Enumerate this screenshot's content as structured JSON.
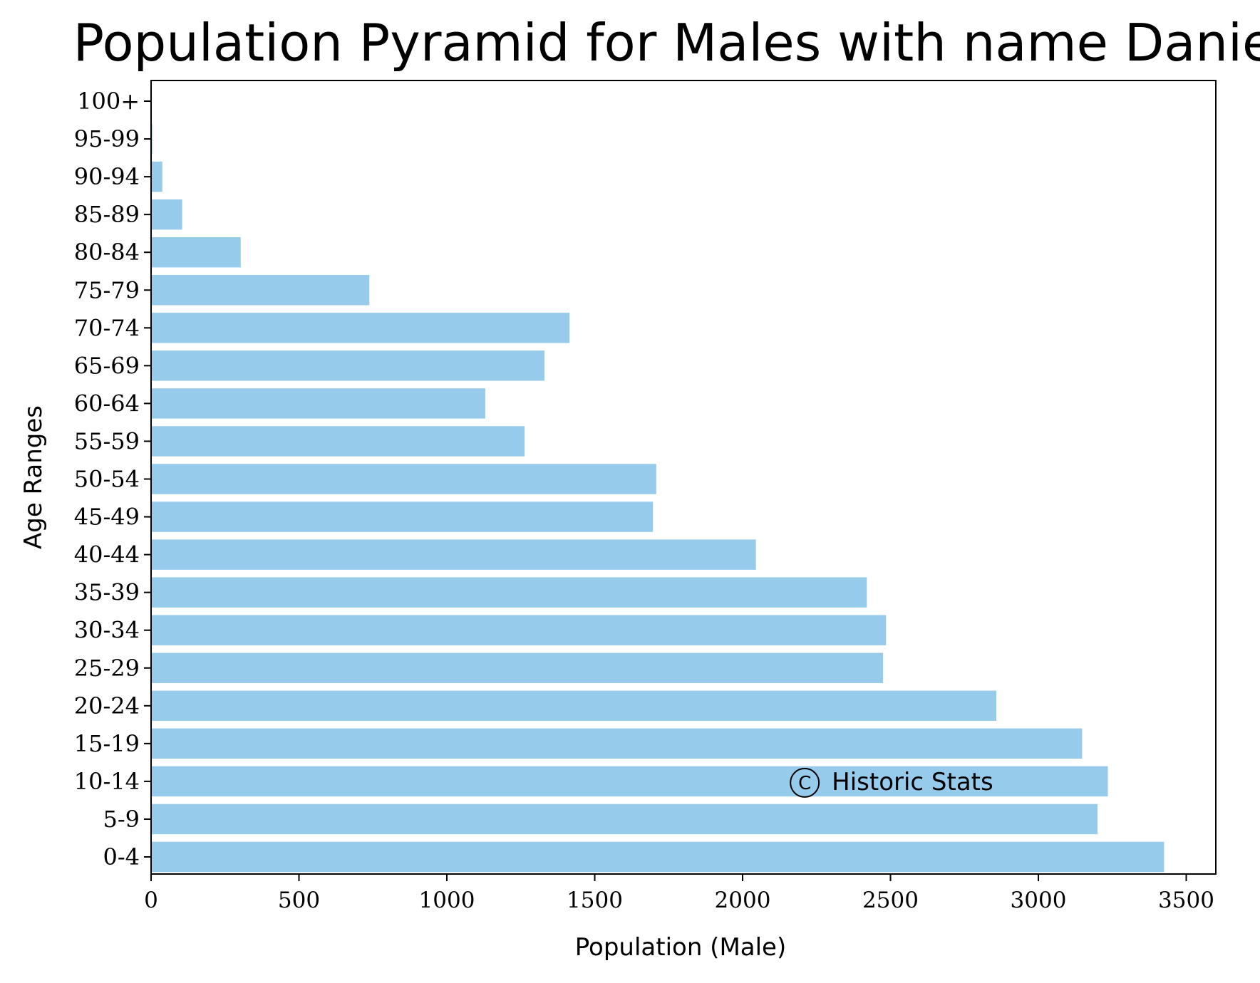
{
  "chart_data": {
    "type": "bar",
    "orientation": "horizontal",
    "title": "Population Pyramid for Males with name Daniel",
    "xlabel": "Population (Male)",
    "ylabel": "Age Ranges",
    "categories": [
      "0-4",
      "5-9",
      "10-14",
      "15-19",
      "20-24",
      "25-29",
      "30-34",
      "35-39",
      "40-44",
      "45-49",
      "50-54",
      "55-59",
      "60-64",
      "65-69",
      "70-74",
      "75-79",
      "80-84",
      "85-89",
      "90-94",
      "95-99",
      "100+"
    ],
    "values": [
      3425,
      3200,
      3235,
      3148,
      2858,
      2475,
      2485,
      2420,
      2045,
      1697,
      1708,
      1263,
      1130,
      1330,
      1415,
      738,
      303,
      105,
      38,
      4,
      1
    ],
    "xlim": [
      0,
      3600
    ],
    "xticks": [
      0,
      500,
      1000,
      1500,
      2000,
      2500,
      3000,
      3500
    ],
    "xtick_labels": [
      "0",
      "500",
      "1000",
      "1500",
      "2000",
      "2500",
      "3000",
      "3500"
    ],
    "grid": false,
    "bar_color": "#97cbec",
    "annotation": "Historic Stats",
    "annotation_symbol": "C",
    "annotation_x": 2210,
    "annotation_category": "10-14"
  }
}
